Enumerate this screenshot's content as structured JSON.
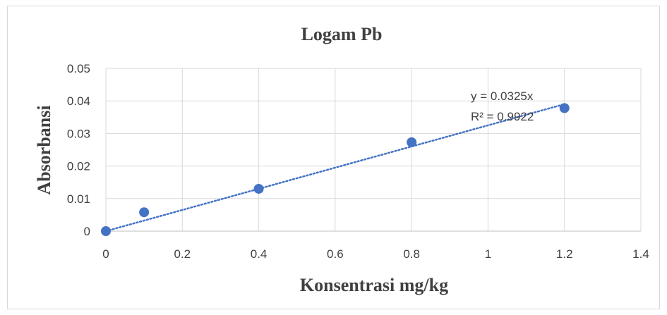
{
  "chart_data": {
    "type": "scatter",
    "title": "Logam Pb",
    "xlabel": "Konsentrasi mg/kg",
    "ylabel": "Absorbansi",
    "xlim": [
      0,
      1.4
    ],
    "ylim": [
      0,
      0.05
    ],
    "x_ticks": [
      "0",
      "0.2",
      "0.4",
      "0.6",
      "0.8",
      "1",
      "1.2",
      "1.4"
    ],
    "y_ticks": [
      "0",
      "0.01",
      "0.02",
      "0.03",
      "0.04",
      "0.05"
    ],
    "grid": true,
    "series": [
      {
        "x": [
          0,
          0.1,
          0.4,
          0.8,
          1.2
        ],
        "y": [
          0,
          0.0058,
          0.013,
          0.0273,
          0.0378
        ],
        "color": "#4472c4"
      }
    ],
    "trendline": {
      "slope": 0.0325,
      "style": "dotted",
      "color": "#4472c4",
      "equation": "y = 0.0325x",
      "r_squared": "R² = 0.9922"
    }
  }
}
